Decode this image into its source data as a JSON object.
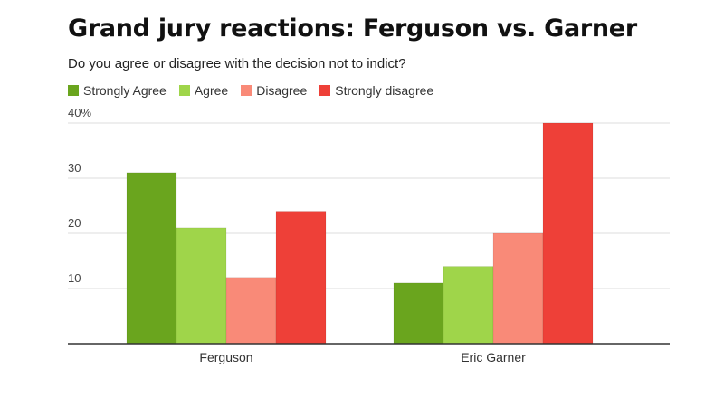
{
  "chart_data": {
    "type": "bar",
    "title": "Grand jury reactions: Ferguson vs. Garner",
    "subtitle": "Do you agree or disagree with the decision not to indict?",
    "categories": [
      "Ferguson",
      "Eric Garner"
    ],
    "series": [
      {
        "name": "Strongly Agree",
        "color": "#6aa51e",
        "values": [
          31,
          11
        ]
      },
      {
        "name": "Agree",
        "color": "#9fd54a",
        "values": [
          21,
          14
        ]
      },
      {
        "name": "Disagree",
        "color": "#f98a78",
        "values": [
          12,
          20
        ]
      },
      {
        "name": "Strongly disagree",
        "color": "#ee4038",
        "values": [
          24,
          40
        ]
      }
    ],
    "yticks": [
      {
        "value": 10,
        "label": "10"
      },
      {
        "value": 20,
        "label": "20"
      },
      {
        "value": 30,
        "label": "30"
      },
      {
        "value": 40,
        "label": "40%"
      }
    ],
    "ylim": [
      0,
      40
    ],
    "xlabel": "",
    "ylabel": "",
    "grid": true,
    "legend_position": "top-left"
  }
}
